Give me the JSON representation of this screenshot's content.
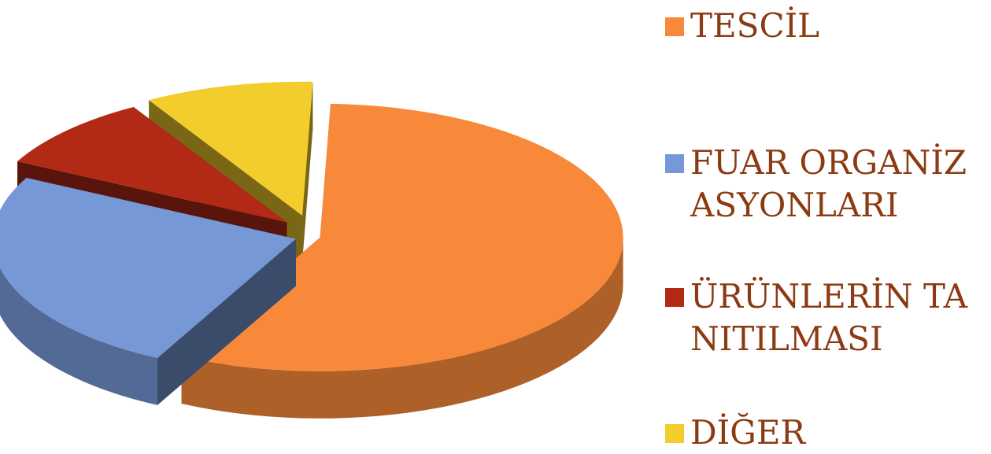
{
  "chart_data": {
    "type": "pie",
    "title": "",
    "style": "3d-exploded",
    "legend_position": "right",
    "slices": [
      {
        "label": "TESCİL",
        "value": 57,
        "color": "#F8893A"
      },
      {
        "label": "FUAR ORGANİZASYONLARI",
        "value": 25,
        "color": "#7698D6"
      },
      {
        "label": "ÜRÜNLERİN TANITILMASI",
        "value": 9,
        "color": "#B22A15"
      },
      {
        "label": "DİĞER",
        "value": 9,
        "color": "#F2CD2C"
      }
    ]
  }
}
